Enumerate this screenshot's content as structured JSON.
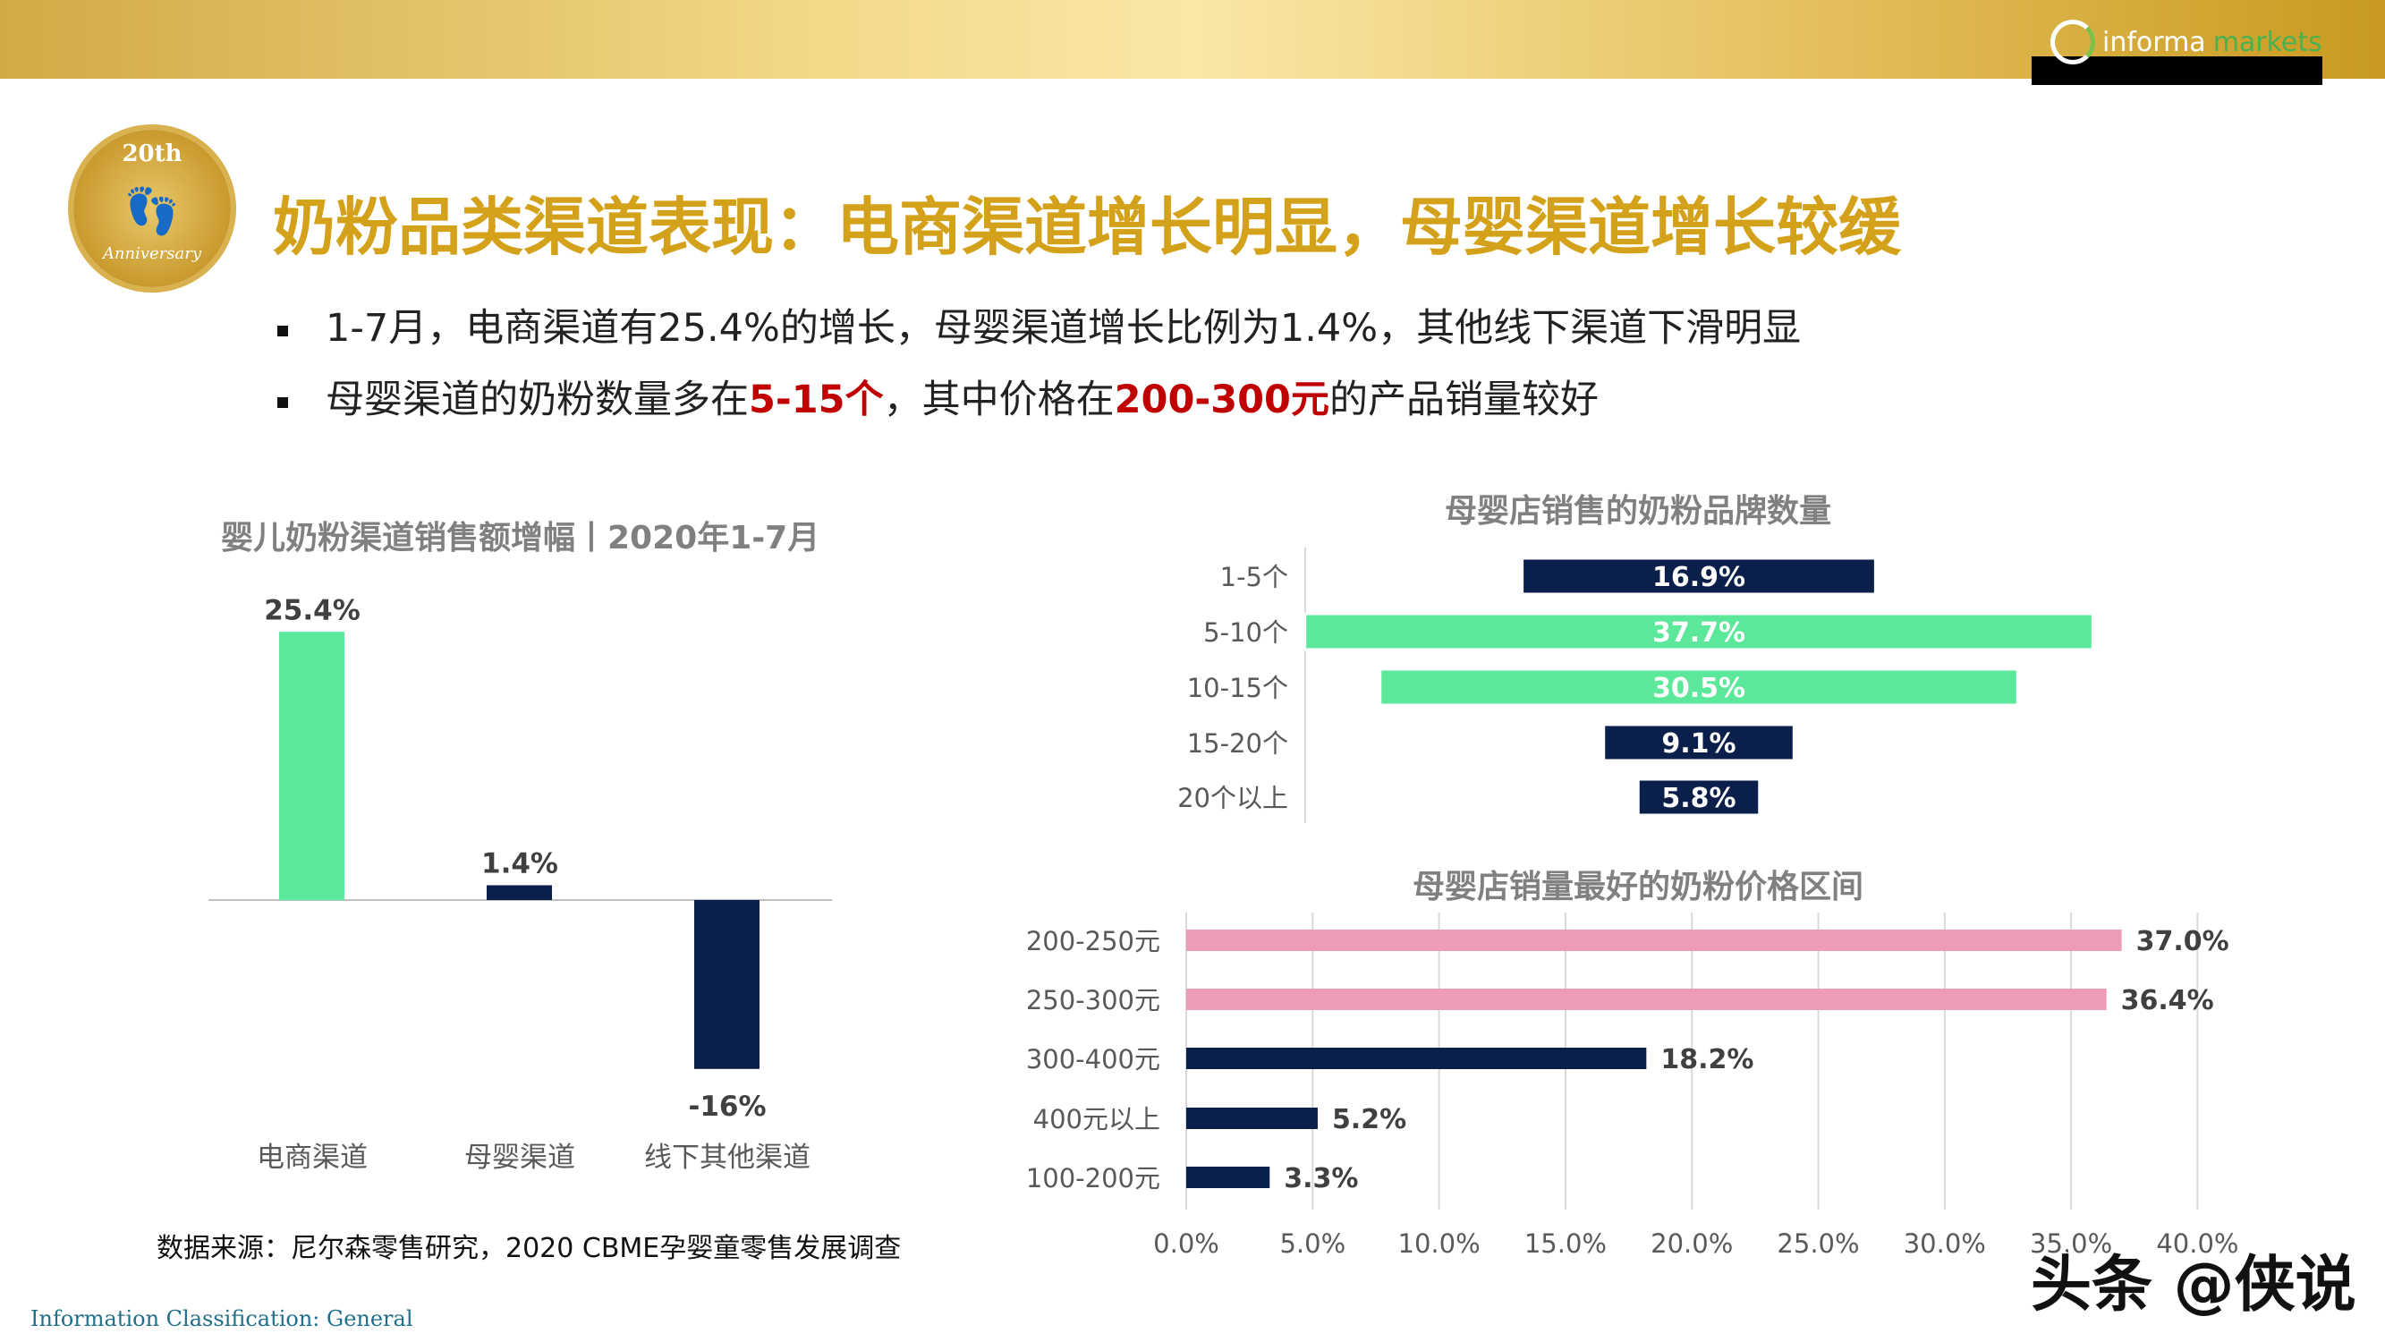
{
  "header": {
    "logo_a": "informa",
    "logo_b": "markets",
    "badge_top": "20th",
    "badge_bottom": "Anniversary"
  },
  "title": "奶粉品类渠道表现：电商渠道增长明显，母婴渠道增长较缓",
  "bullets": [
    {
      "text": "1-7月，电商渠道有25.4%的增长，母婴渠道增长比例为1.4%，其他线下渠道下滑明显"
    },
    {
      "pre": "母婴渠道的奶粉数量多在",
      "hl1": "5-15个",
      "mid": "，其中价格在",
      "hl2": "200-300元",
      "post": "的产品销量较好"
    }
  ],
  "colors": {
    "gold": "#d4a11a",
    "green": "#5ce89a",
    "navy": "#0b1f4b",
    "pink": "#ee9bb8",
    "red": "#c00000"
  },
  "chart_data": [
    {
      "type": "bar",
      "title": "婴儿奶粉渠道销售额增幅丨2020年1-7月",
      "categories": [
        "电商渠道",
        "母婴渠道",
        "线下其他渠道"
      ],
      "values": [
        25.4,
        1.4,
        -16
      ],
      "labels": [
        "25.4%",
        "1.4%",
        "-16%"
      ],
      "colors": [
        "#5ce89a",
        "#0b1f4b",
        "#0b1f4b"
      ]
    },
    {
      "type": "bar",
      "orientation": "horizontal-centered",
      "title": "母婴店销售的奶粉品牌数量",
      "categories": [
        "1-5个",
        "5-10个",
        "10-15个",
        "15-20个",
        "20个以上"
      ],
      "values": [
        16.9,
        37.7,
        30.5,
        9.1,
        5.8
      ],
      "labels": [
        "16.9%",
        "37.7%",
        "30.5%",
        "9.1%",
        "5.8%"
      ],
      "colors": [
        "#0b1f4b",
        "#5ce89a",
        "#5ce89a",
        "#0b1f4b",
        "#0b1f4b"
      ]
    },
    {
      "type": "bar",
      "orientation": "horizontal",
      "title": "母婴店销量最好的奶粉价格区间",
      "categories": [
        "200-250元",
        "250-300元",
        "300-400元",
        "400元以上",
        "100-200元"
      ],
      "values": [
        37.0,
        36.4,
        18.2,
        5.2,
        3.3
      ],
      "labels": [
        "37.0%",
        "36.4%",
        "18.2%",
        "5.2%",
        "3.3%"
      ],
      "colors": [
        "#ee9bb8",
        "#ee9bb8",
        "#0b1f4b",
        "#0b1f4b",
        "#0b1f4b"
      ],
      "xlim": [
        0,
        40
      ],
      "xticks": [
        "0.0%",
        "5.0%",
        "10.0%",
        "15.0%",
        "20.0%",
        "25.0%",
        "30.0%",
        "35.0%",
        "40.0%"
      ],
      "grid": true
    }
  ],
  "source": "数据来源：尼尔森零售研究，2020 CBME孕婴童零售发展调查",
  "classification": "Information Classification: General",
  "watermark": "头条 @侠说"
}
